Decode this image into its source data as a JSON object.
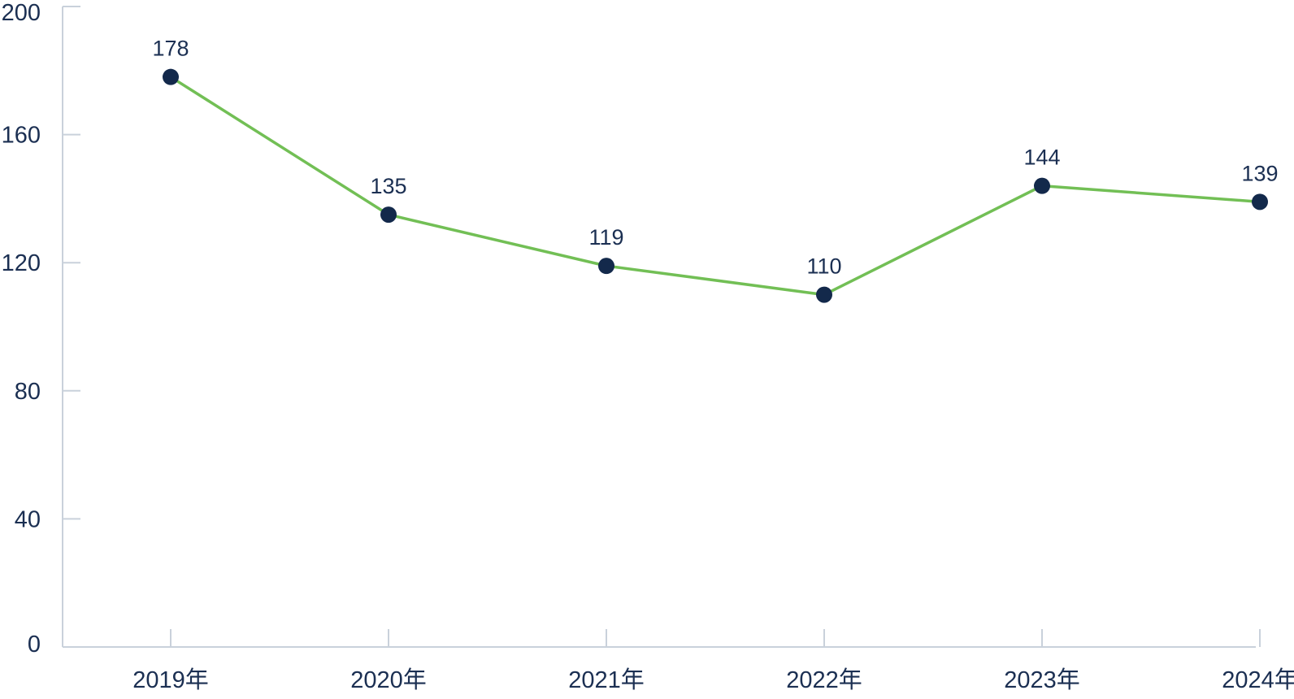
{
  "chart_data": {
    "type": "line",
    "title": "",
    "xlabel": "",
    "ylabel": "",
    "categories": [
      "2019年",
      "2020年",
      "2021年",
      "2022年",
      "2023年",
      "2024年"
    ],
    "series": [
      {
        "values": [
          178,
          135,
          119,
          110,
          144,
          139
        ]
      }
    ],
    "ylim": [
      0,
      200
    ],
    "yticks": [
      0,
      40,
      80,
      120,
      160,
      200
    ],
    "grid": false,
    "legend": "none",
    "data_labels": true,
    "colors": {
      "line": "#72bf55",
      "marker": "#13294b",
      "axis": "#c9d1db",
      "text": "#1b2f52"
    }
  }
}
